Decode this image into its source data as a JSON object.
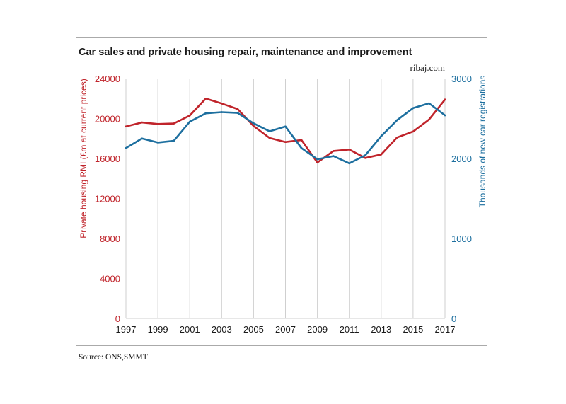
{
  "chart_data": {
    "type": "line",
    "title": "Car sales and private housing repair, maintenance and improvement",
    "brand": "ribaj.com",
    "source": "Source: ONS,SMMT",
    "x_ticks": [
      "1997",
      "1999",
      "2001",
      "2003",
      "2005",
      "2007",
      "2009",
      "2011",
      "2013",
      "2015",
      "2017"
    ],
    "xlim": [
      1997,
      2017
    ],
    "left_axis": {
      "label": "Private housing RMI (£m at current prices)",
      "ylim": [
        0,
        24000
      ],
      "ticks": [
        "0",
        "4000",
        "8000",
        "12000",
        "16000",
        "20000",
        "24000"
      ],
      "color": "#c0242b"
    },
    "right_axis": {
      "label": "Thousands of new car registrations",
      "ylim": [
        0,
        3000
      ],
      "ticks": [
        "0",
        "1000",
        "2000",
        "3000"
      ],
      "color": "#1d6f9f"
    },
    "series": [
      {
        "axis": "left",
        "color": "#c0242b",
        "points": [
          [
            1997,
            19200
          ],
          [
            1998,
            19600
          ],
          [
            1999,
            19450
          ],
          [
            2000,
            19500
          ],
          [
            2001,
            20300
          ],
          [
            2002,
            22000
          ],
          [
            2003,
            21500
          ],
          [
            2004,
            20950
          ],
          [
            2005,
            19250
          ],
          [
            2006,
            18050
          ],
          [
            2007,
            17650
          ],
          [
            2008,
            17850
          ],
          [
            2009,
            15600
          ],
          [
            2010,
            16750
          ],
          [
            2011,
            16900
          ],
          [
            2012,
            16050
          ],
          [
            2013,
            16400
          ],
          [
            2014,
            18100
          ],
          [
            2015,
            18700
          ],
          [
            2016,
            19900
          ],
          [
            2017,
            21900
          ]
        ]
      },
      {
        "axis": "right",
        "color": "#1d6f9f",
        "points": [
          [
            1997,
            2130
          ],
          [
            1998,
            2250
          ],
          [
            1999,
            2200
          ],
          [
            2000,
            2220
          ],
          [
            2001,
            2460
          ],
          [
            2002,
            2565
          ],
          [
            2003,
            2580
          ],
          [
            2004,
            2570
          ],
          [
            2005,
            2440
          ],
          [
            2006,
            2340
          ],
          [
            2007,
            2400
          ],
          [
            2008,
            2130
          ],
          [
            2009,
            1990
          ],
          [
            2010,
            2030
          ],
          [
            2011,
            1940
          ],
          [
            2012,
            2040
          ],
          [
            2013,
            2280
          ],
          [
            2014,
            2480
          ],
          [
            2015,
            2630
          ],
          [
            2016,
            2690
          ],
          [
            2017,
            2540
          ]
        ]
      }
    ],
    "grid": "vertical"
  }
}
